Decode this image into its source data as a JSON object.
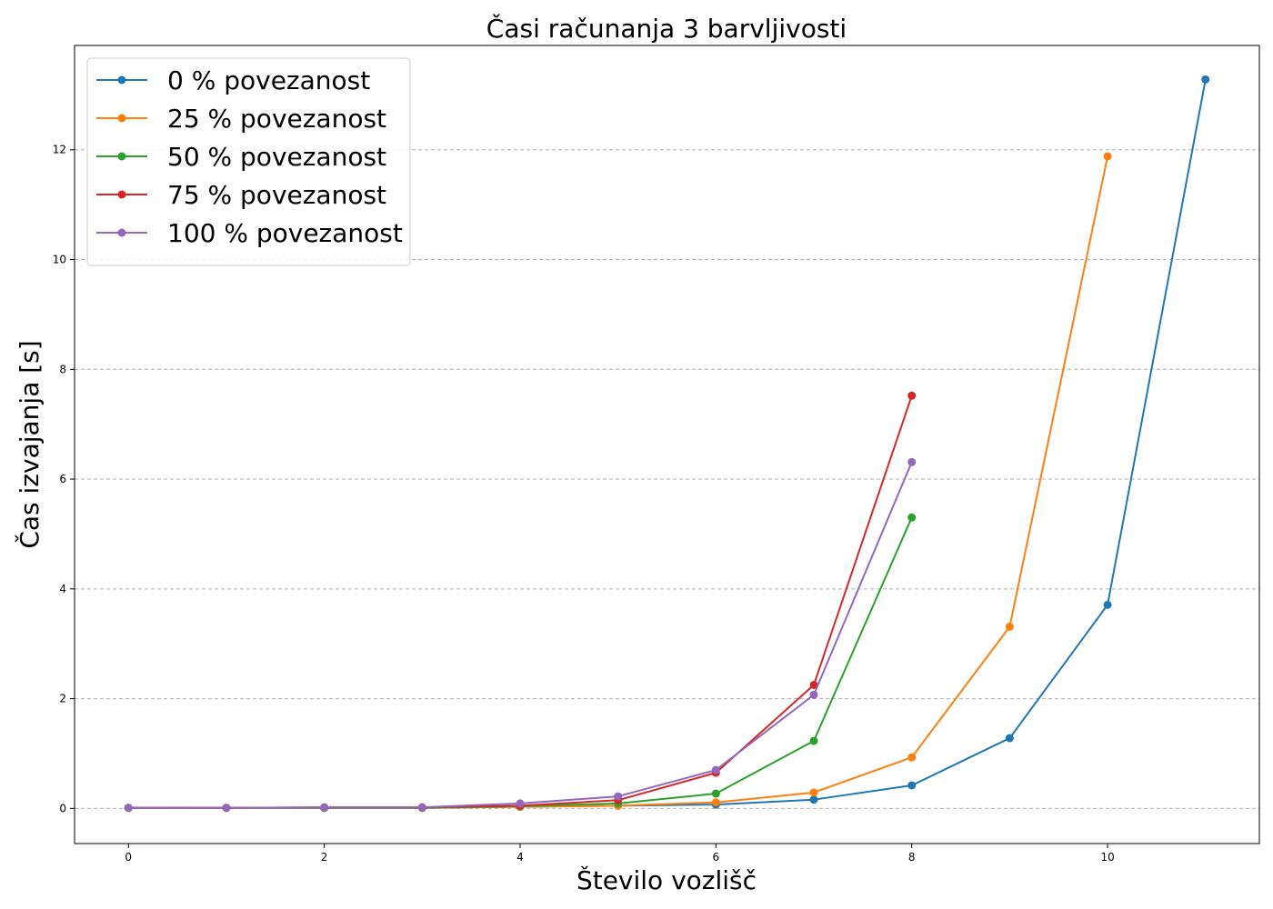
{
  "chart_data": {
    "type": "line",
    "title": "Časi računanja 3 barvljivosti",
    "xlabel": "Število vozlišč",
    "ylabel": "Čas izvajanja [s]",
    "xlim": [
      -0.55,
      11.55
    ],
    "ylim": [
      -0.64,
      13.9
    ],
    "xticks": [
      0,
      2,
      4,
      6,
      8,
      10
    ],
    "yticks": [
      0,
      2,
      4,
      6,
      8,
      10,
      12
    ],
    "grid": "y-dashed",
    "legend_position": "top-left",
    "series": [
      {
        "name": "0 % povezanost",
        "color": "#1f77b4",
        "x": [
          0,
          1,
          2,
          3,
          4,
          5,
          6,
          7,
          8,
          9,
          10,
          11
        ],
        "y": [
          0.01,
          0.01,
          0.01,
          0.01,
          0.03,
          0.05,
          0.07,
          0.16,
          0.42,
          1.28,
          3.71,
          13.28
        ]
      },
      {
        "name": "25 % povezanost",
        "color": "#ff7f0e",
        "x": [
          0,
          1,
          2,
          3,
          4,
          5,
          6,
          7,
          8,
          9,
          10
        ],
        "y": [
          0.01,
          0.01,
          0.01,
          0.01,
          0.03,
          0.05,
          0.11,
          0.29,
          0.93,
          3.31,
          11.88
        ]
      },
      {
        "name": "50 % povezanost",
        "color": "#2ca02c",
        "x": [
          0,
          1,
          2,
          3,
          4,
          5,
          6,
          7,
          8
        ],
        "y": [
          0.01,
          0.01,
          0.01,
          0.01,
          0.04,
          0.09,
          0.27,
          1.23,
          5.3
        ]
      },
      {
        "name": "75 % povezanost",
        "color": "#d62728",
        "x": [
          0,
          1,
          2,
          3,
          4,
          5,
          6,
          7,
          8
        ],
        "y": [
          0.01,
          0.01,
          0.02,
          0.02,
          0.05,
          0.15,
          0.65,
          2.25,
          7.52
        ]
      },
      {
        "name": "100 % povezanost",
        "color": "#9467bd",
        "x": [
          0,
          1,
          2,
          3,
          4,
          5,
          6,
          7,
          8
        ],
        "y": [
          0.01,
          0.01,
          0.02,
          0.02,
          0.09,
          0.22,
          0.7,
          2.07,
          6.31
        ]
      }
    ]
  }
}
